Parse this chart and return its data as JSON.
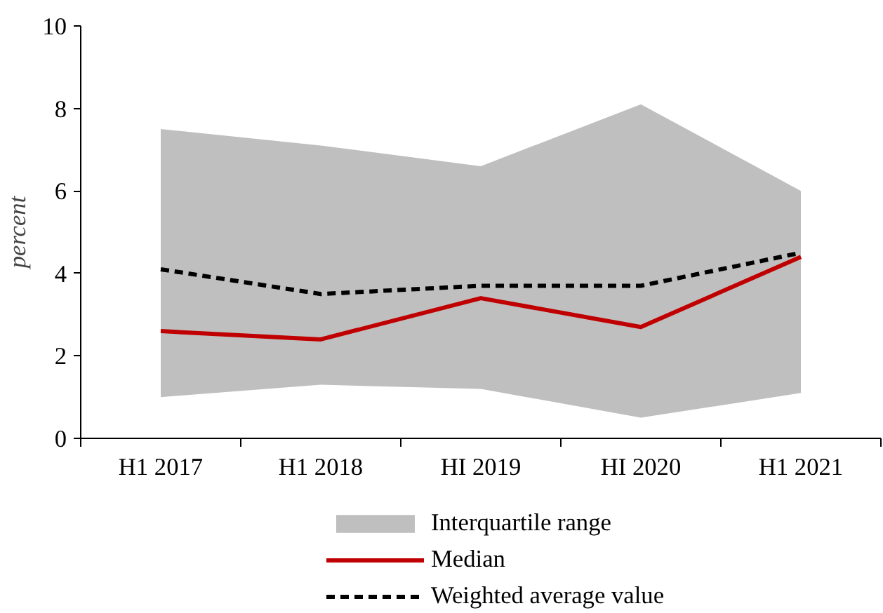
{
  "chart_data": {
    "type": "line",
    "categories": [
      "H1 2017",
      "H1 2018",
      "HI 2019",
      "HI 2020",
      "H1 2021"
    ],
    "ylabel": "percent",
    "ylim": [
      0,
      10
    ],
    "yticks": [
      0,
      2,
      4,
      6,
      8,
      10
    ],
    "legend": "bottom",
    "series": [
      {
        "name": "Interquartile range",
        "type": "area",
        "color": "#bfbfbf",
        "values": [
          null,
          null,
          null,
          null,
          null
        ],
        "lower": [
          1.0,
          1.3,
          1.2,
          0.5,
          1.1
        ],
        "upper": [
          7.5,
          7.1,
          6.6,
          8.1,
          6.0
        ]
      },
      {
        "name": "Median",
        "color": "#c00000",
        "line_style": "solid",
        "values": [
          2.6,
          2.4,
          3.4,
          2.7,
          4.4
        ]
      },
      {
        "name": "Weighted average value",
        "color": "#000000",
        "line_style": "dashed",
        "values": [
          4.1,
          3.5,
          3.7,
          3.7,
          4.5
        ]
      }
    ]
  }
}
